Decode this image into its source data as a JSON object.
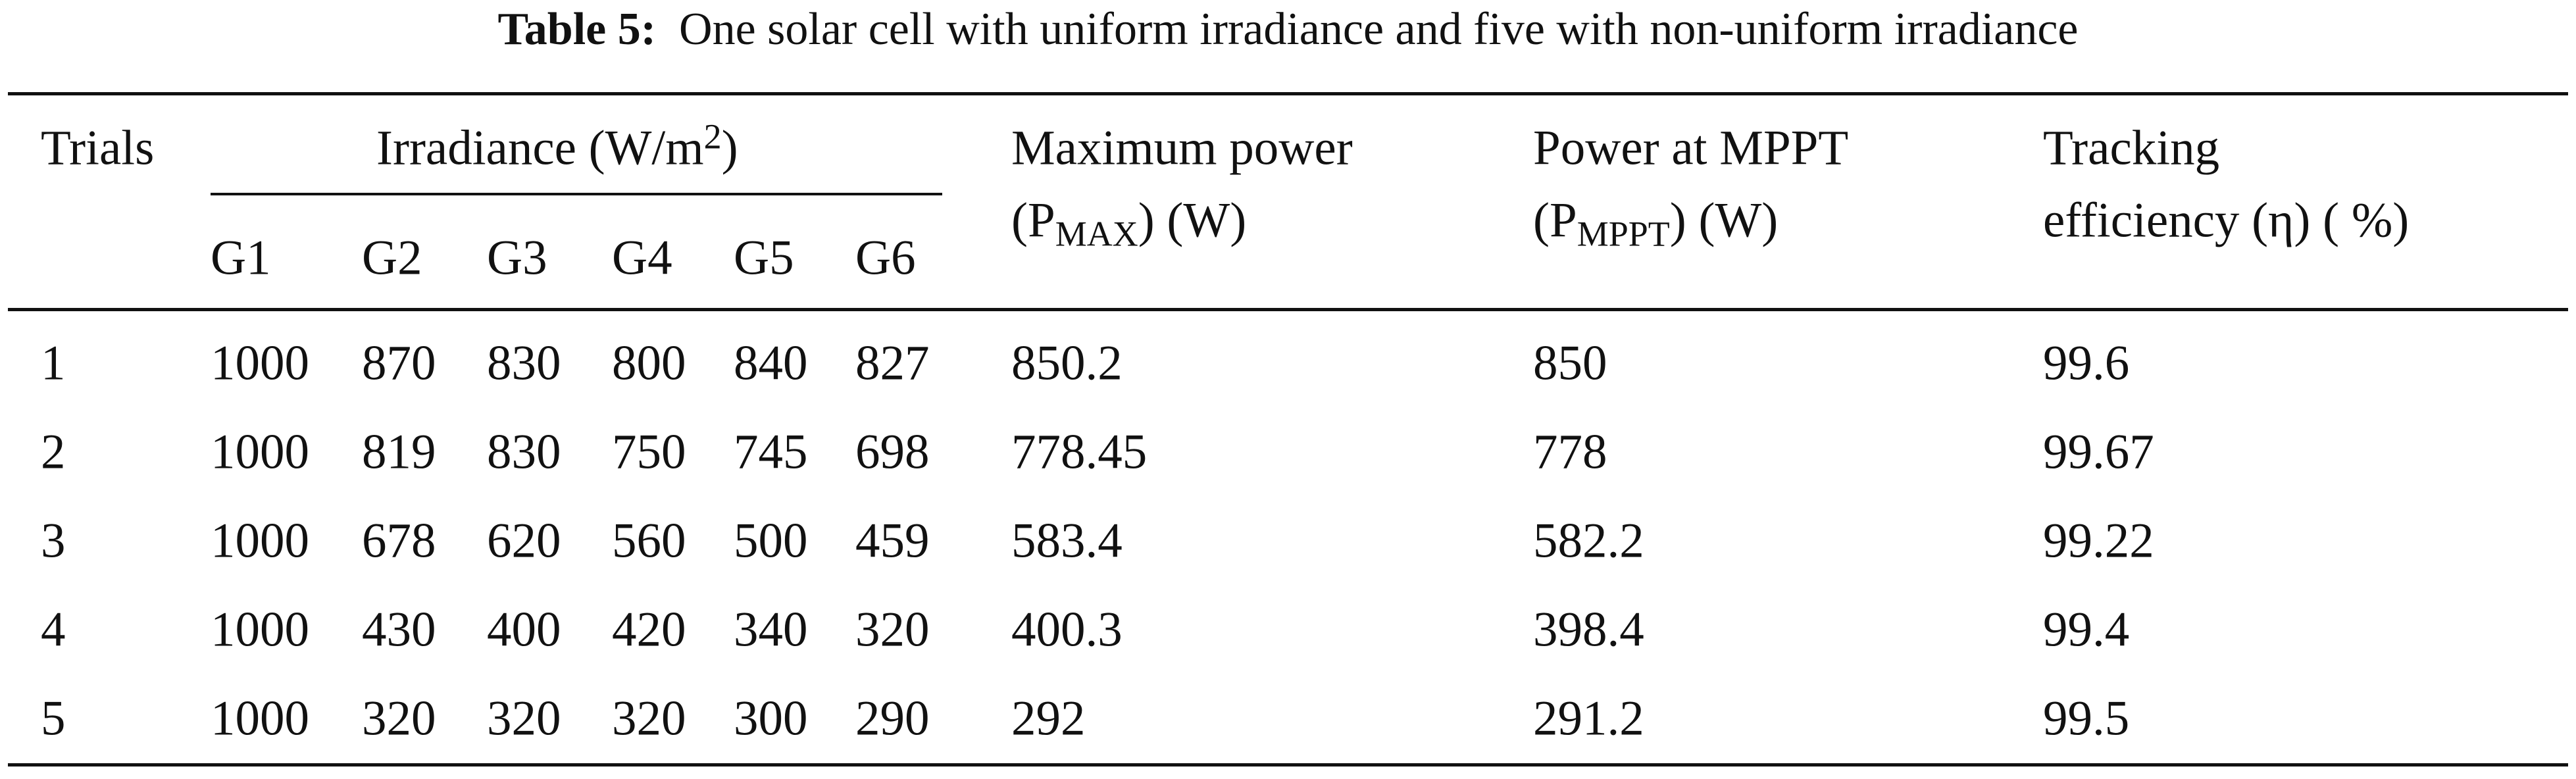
{
  "title": {
    "label": "Table 5:",
    "text": "One solar cell with uniform irradiance and five with non-uniform irradiance"
  },
  "table": {
    "headers": {
      "trials": "Trials",
      "irradiance": {
        "text": "Irradiance (W/m",
        "sup": "2",
        "close": ")"
      },
      "sub_headers": [
        "G1",
        "G2",
        "G3",
        "G4",
        "G5",
        "G6"
      ],
      "max_power": {
        "line1": "Maximum power",
        "pre": "(P",
        "sub": "MAX",
        "post": ") (W)"
      },
      "power_mppt": {
        "line1": "Power at MPPT",
        "pre": "(P",
        "sub": "MPPT",
        "post": ") (W)"
      },
      "tracking": {
        "line1": "Tracking",
        "line2": "efficiency (η) ( %)"
      }
    },
    "rows": [
      [
        1,
        1000,
        870,
        830,
        800,
        840,
        827,
        850.2,
        850,
        99.6
      ],
      [
        2,
        1000,
        819,
        830,
        750,
        745,
        698,
        778.45,
        778,
        99.67
      ],
      [
        3,
        1000,
        678,
        620,
        560,
        500,
        459,
        583.4,
        582.2,
        99.22
      ],
      [
        4,
        1000,
        430,
        400,
        420,
        340,
        320,
        400.3,
        398.4,
        99.4
      ],
      [
        5,
        1000,
        320,
        320,
        320,
        300,
        290,
        292,
        291.2,
        99.5
      ]
    ]
  }
}
